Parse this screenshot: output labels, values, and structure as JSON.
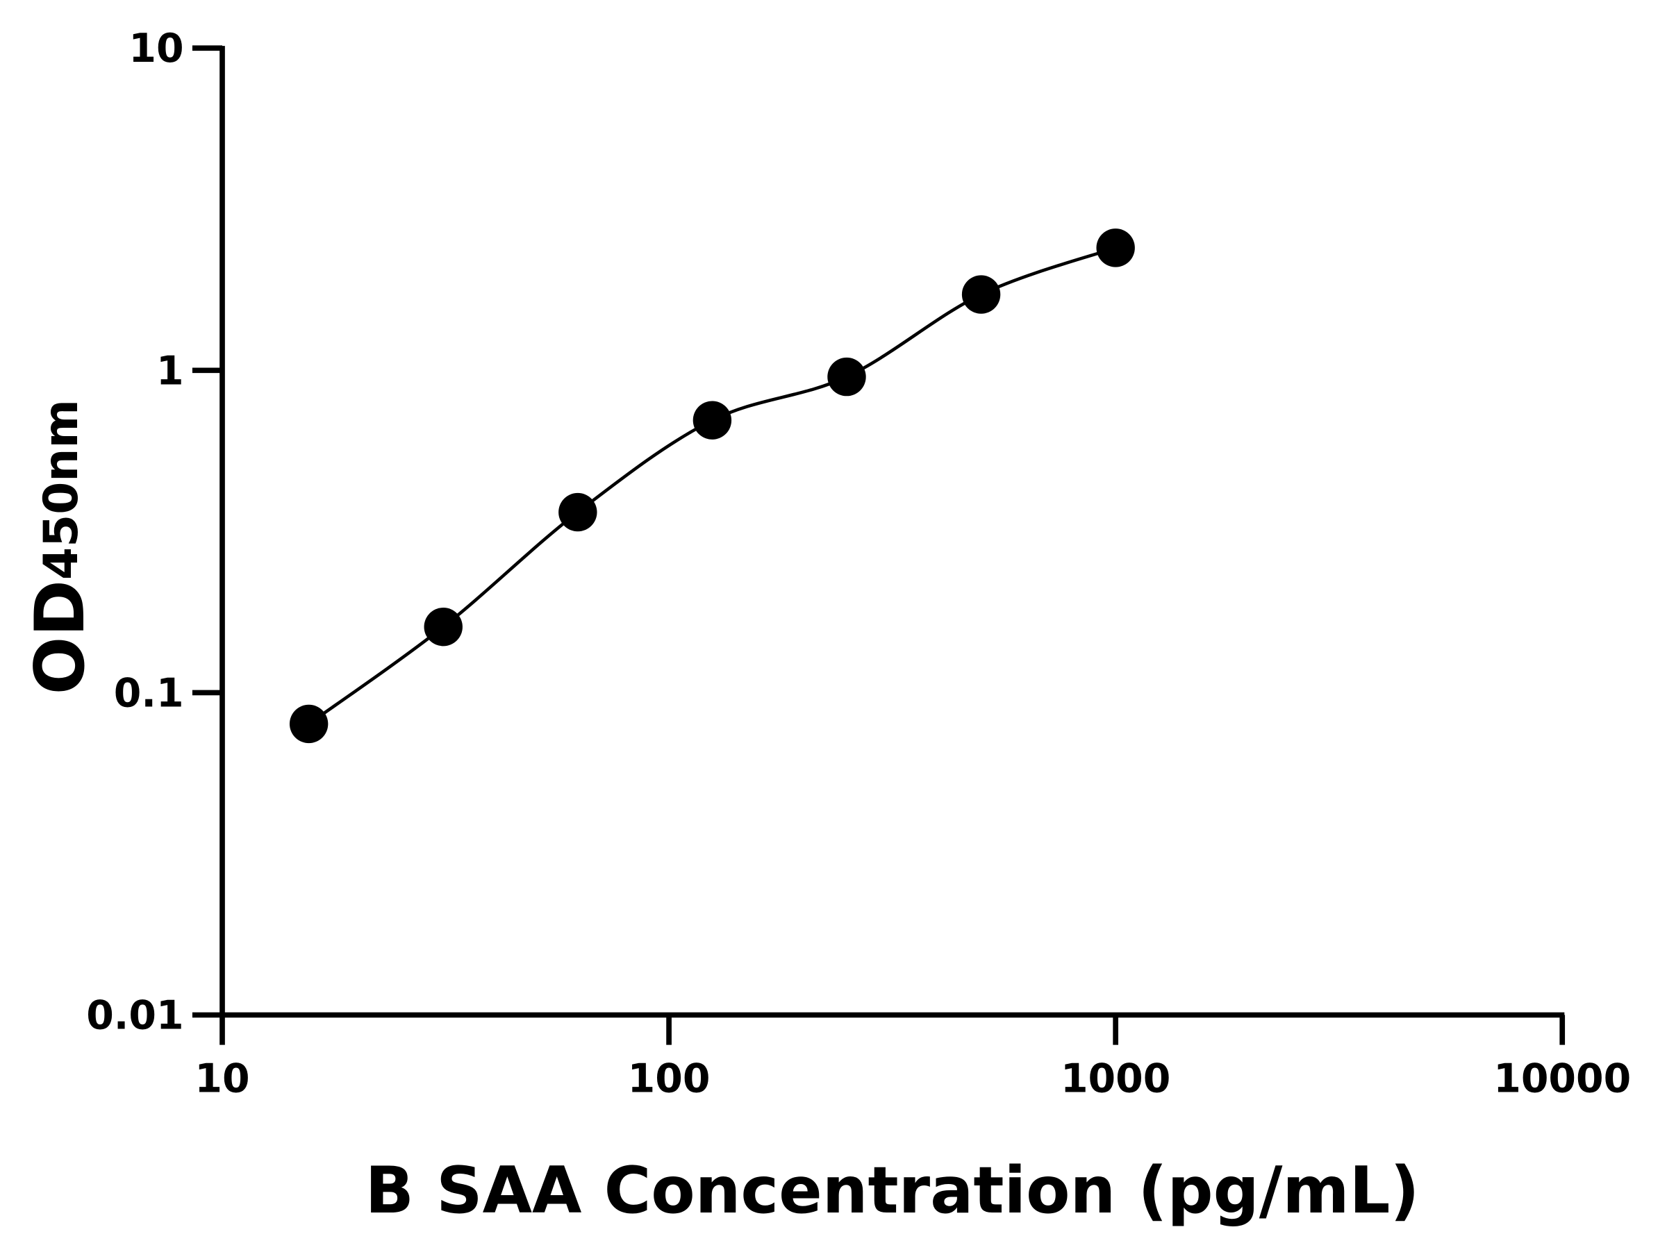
{
  "chart_data": {
    "type": "scatter",
    "title": "",
    "xlabel": "B SAA Concentration (pg/mL)",
    "ylabel_main": "OD",
    "ylabel_sub": "450nm",
    "x_scale": "log",
    "y_scale": "log",
    "xlim": [
      10,
      10000
    ],
    "ylim": [
      0.01,
      10
    ],
    "x_ticks": [
      "10",
      "100",
      "1000",
      "10000"
    ],
    "y_ticks": [
      "0.01",
      "0.1",
      "1",
      "10"
    ],
    "grid": false,
    "fit_curve": true,
    "color": "#000000",
    "series": [
      {
        "x": [
          15.625,
          31.25,
          62.5,
          125,
          250,
          500,
          1000
        ],
        "y": [
          0.08,
          0.16,
          0.363,
          0.7,
          0.955,
          1.72,
          2.4
        ]
      }
    ]
  }
}
